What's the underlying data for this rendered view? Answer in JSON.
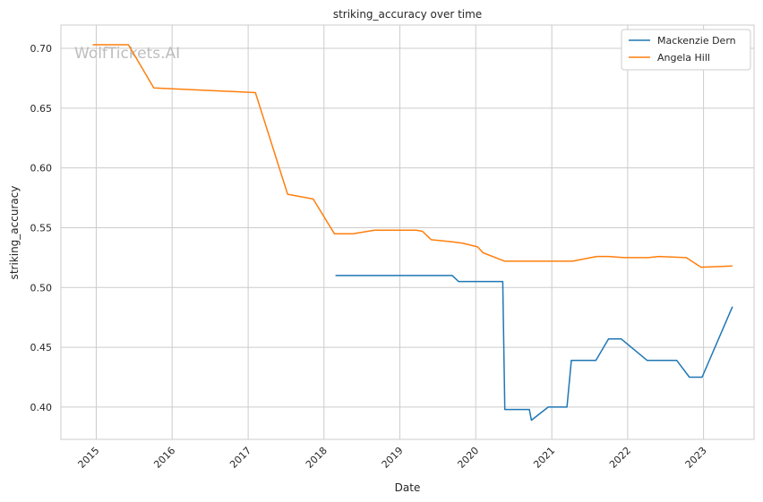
{
  "chart_data": {
    "type": "line",
    "title": "striking_accuracy over time",
    "xlabel": "Date",
    "ylabel": "striking_accuracy",
    "watermark": "WolfTickets.AI",
    "x_ticks": [
      "2015",
      "2016",
      "2017",
      "2018",
      "2019",
      "2020",
      "2021",
      "2022",
      "2023"
    ],
    "y_ticks": [
      "0.40",
      "0.45",
      "0.50",
      "0.55",
      "0.60",
      "0.65",
      "0.70"
    ],
    "xlim": [
      "2014-07-15",
      "2023-09-01"
    ],
    "ylim": [
      0.373,
      0.7195
    ],
    "grid": true,
    "legend_position": "top-right",
    "series": [
      {
        "name": "Mackenzie Dern",
        "color": "#1f77b4",
        "points": [
          [
            "2018-02-25",
            0.51
          ],
          [
            "2019-09-10",
            0.51
          ],
          [
            "2019-10-10",
            0.505
          ],
          [
            "2020-05-10",
            0.505
          ],
          [
            "2020-05-20",
            0.398
          ],
          [
            "2020-09-15",
            0.398
          ],
          [
            "2020-09-25",
            0.389
          ],
          [
            "2020-12-15",
            0.4
          ],
          [
            "2021-03-15",
            0.4
          ],
          [
            "2021-04-05",
            0.439
          ],
          [
            "2021-08-01",
            0.439
          ],
          [
            "2021-10-01",
            0.457
          ],
          [
            "2021-12-01",
            0.457
          ],
          [
            "2022-04-05",
            0.439
          ],
          [
            "2022-08-25",
            0.439
          ],
          [
            "2022-10-25",
            0.425
          ],
          [
            "2022-12-25",
            0.425
          ],
          [
            "2023-05-20",
            0.484
          ]
        ]
      },
      {
        "name": "Angela Hill",
        "color": "#ff7f0e",
        "points": [
          [
            "2014-12-15",
            0.703
          ],
          [
            "2015-06-05",
            0.703
          ],
          [
            "2015-10-05",
            0.667
          ],
          [
            "2017-02-05",
            0.663
          ],
          [
            "2017-07-10",
            0.578
          ],
          [
            "2017-11-10",
            0.574
          ],
          [
            "2018-02-20",
            0.545
          ],
          [
            "2018-05-20",
            0.545
          ],
          [
            "2018-09-01",
            0.548
          ],
          [
            "2019-03-20",
            0.548
          ],
          [
            "2019-04-20",
            0.547
          ],
          [
            "2019-06-01",
            0.54
          ],
          [
            "2019-09-20",
            0.538
          ],
          [
            "2019-11-01",
            0.537
          ],
          [
            "2020-01-10",
            0.534
          ],
          [
            "2020-02-05",
            0.529
          ],
          [
            "2020-05-20",
            0.522
          ],
          [
            "2020-11-15",
            0.522
          ],
          [
            "2021-04-10",
            0.522
          ],
          [
            "2021-08-05",
            0.526
          ],
          [
            "2021-10-01",
            0.526
          ],
          [
            "2021-12-15",
            0.525
          ],
          [
            "2022-04-10",
            0.525
          ],
          [
            "2022-06-01",
            0.526
          ],
          [
            "2022-10-10",
            0.525
          ],
          [
            "2022-12-20",
            0.517
          ],
          [
            "2023-05-20",
            0.518
          ]
        ]
      }
    ]
  }
}
